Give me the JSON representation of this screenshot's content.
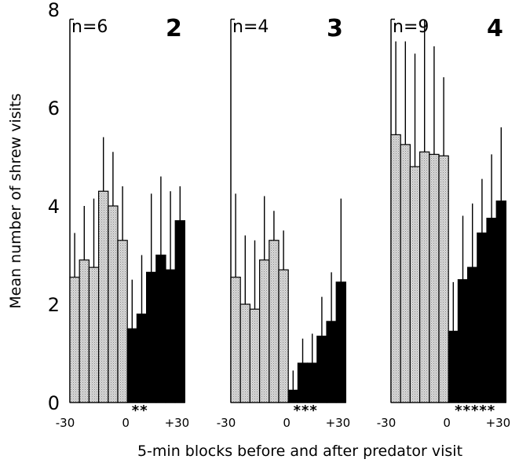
{
  "chart_data": {
    "type": "bar",
    "ylabel": "Mean number of shrew visits",
    "xlabel": "5-min blocks before and after predator visit",
    "ylim": [
      0,
      8
    ],
    "yticks": [
      "0",
      "2",
      "4",
      "6",
      "8"
    ],
    "bar_colors": {
      "before": "#d9d9d9",
      "after": "#000000"
    },
    "panels": [
      {
        "panel_label": "2",
        "n_label": "n=6",
        "xticks": [
          "-30",
          "0",
          "+30"
        ],
        "before": {
          "values": [
            2.55,
            2.9,
            2.75,
            4.3,
            4.0,
            3.3
          ],
          "error": [
            0.9,
            1.1,
            1.4,
            1.1,
            1.1,
            1.1
          ]
        },
        "after": {
          "values": [
            1.5,
            1.8,
            2.65,
            3.0,
            2.7,
            3.7
          ],
          "error": [
            1.0,
            1.2,
            1.6,
            1.6,
            1.6,
            0.7
          ]
        },
        "significance": "**"
      },
      {
        "panel_label": "3",
        "n_label": "n=4",
        "xticks": [
          "-30",
          "0",
          "+30"
        ],
        "before": {
          "values": [
            2.55,
            2.0,
            1.9,
            2.9,
            3.3,
            2.7
          ],
          "error": [
            1.7,
            1.4,
            1.4,
            1.3,
            0.6,
            0.8
          ]
        },
        "after": {
          "values": [
            0.25,
            0.8,
            0.8,
            1.35,
            1.65,
            2.45
          ],
          "error": [
            0.4,
            0.5,
            0.6,
            0.8,
            1.0,
            1.7
          ]
        },
        "significance": "***"
      },
      {
        "panel_label": "4",
        "n_label": "n=9",
        "xticks": [
          "-30",
          "0",
          "+30"
        ],
        "before": {
          "values": [
            5.45,
            5.25,
            4.8,
            5.1,
            5.05,
            5.02
          ],
          "error": [
            1.9,
            2.1,
            2.3,
            2.7,
            2.2,
            1.6
          ]
        },
        "after": {
          "values": [
            1.45,
            2.5,
            2.75,
            3.45,
            3.75,
            4.1
          ],
          "error": [
            1.0,
            1.3,
            1.3,
            1.1,
            1.3,
            1.5
          ]
        },
        "significance": "*****"
      }
    ]
  }
}
